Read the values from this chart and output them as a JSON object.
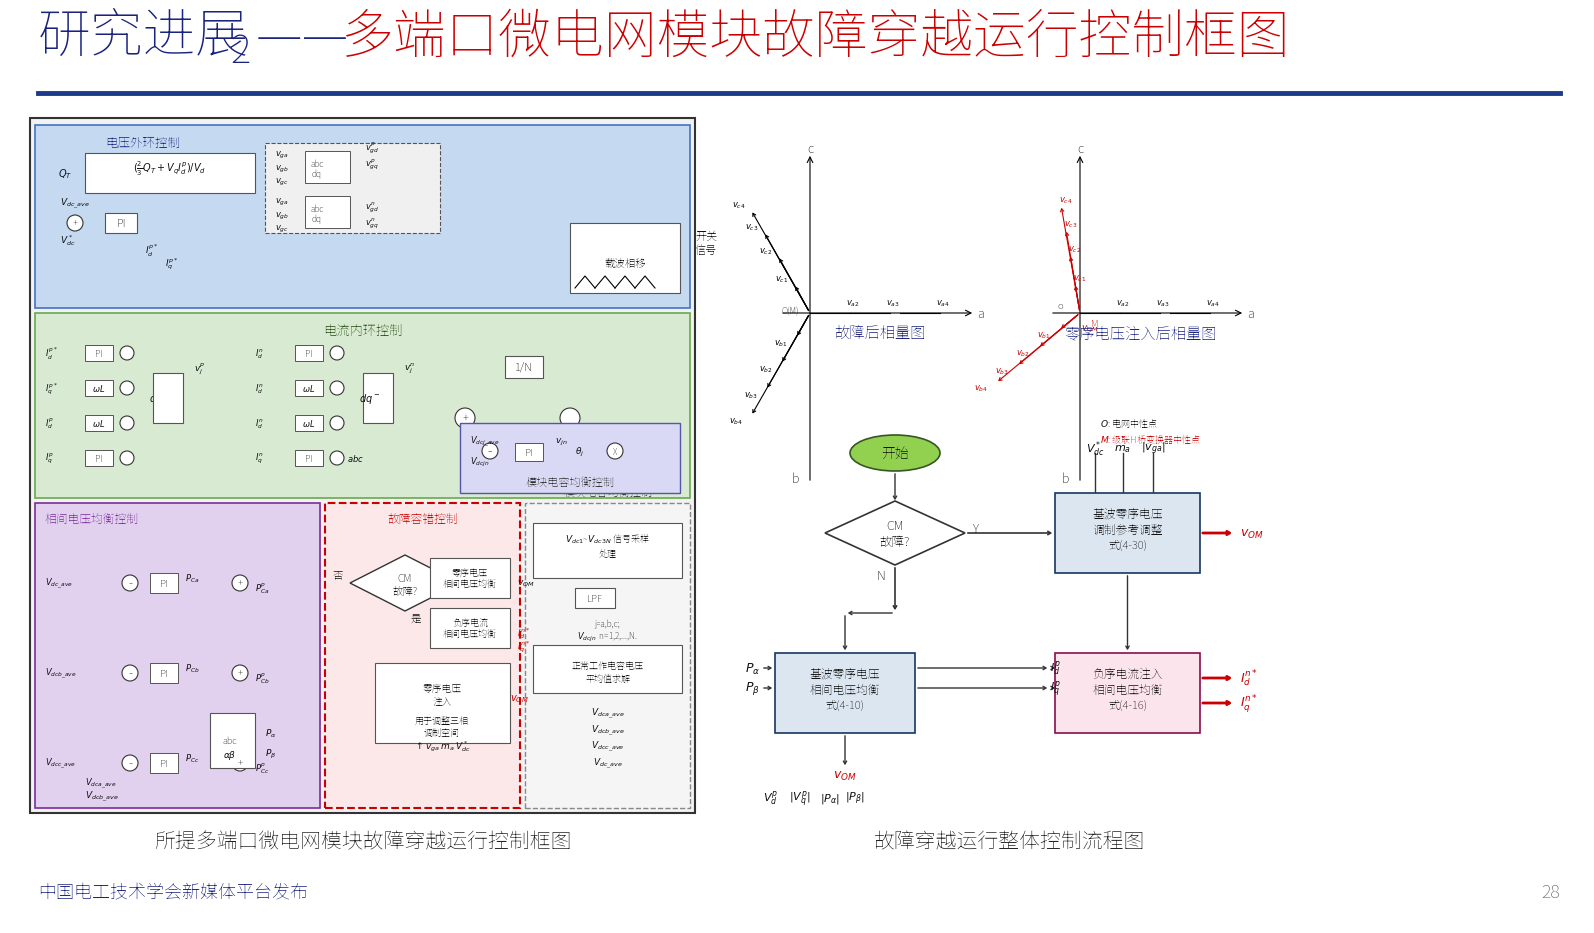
{
  "title_part1": "研究进展",
  "title_num": "2",
  "title_dash": "——",
  "title_part2": "多端口微电网模块故障穿越运行控制框图",
  "title_part1_color": "#1a237e",
  "title_part2_color": "#cc0000",
  "title_fontsize": 38,
  "underline_color": "#1a3a8a",
  "bg_color": "#ffffff",
  "caption_left": "所提多端口微电网模块故障穿越运行控制框图",
  "caption_right": "故障穿越运行整体控制流程图",
  "caption_color": "#222222",
  "caption_fontsize": 15,
  "footer_text": "中国电工技术学会新媒体平台发布",
  "footer_color": "#1a237e",
  "footer_fontsize": 13,
  "page_num": "28",
  "page_color": "#666666",
  "page_fontsize": 13
}
